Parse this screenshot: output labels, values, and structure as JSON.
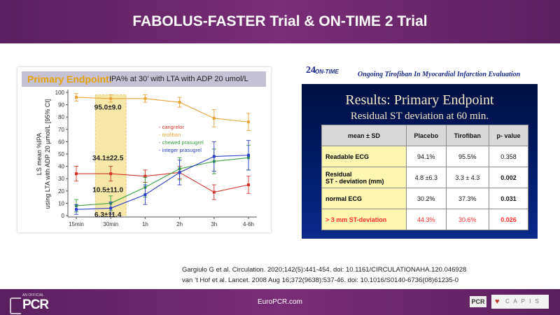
{
  "header": {
    "title": "FABOLUS-FASTER Trial & ON-TIME 2 Trial"
  },
  "left_panel": {
    "banner_lead": "Primary Endpoint:",
    "banner_rest": "IPA% at 30’ with LTA with ADP 20 umol/L"
  },
  "chart_data": {
    "type": "line",
    "ylabel_line1": "LS mean %IPA",
    "ylabel_line2": "using LTA with ADP 20 µmol/L [95% CI]",
    "categories": [
      "15min",
      "30min",
      "1h",
      "2h",
      "3h",
      "4-6h"
    ],
    "ylim": [
      0,
      100
    ],
    "yticks": [
      0,
      10,
      20,
      30,
      40,
      50,
      60,
      70,
      80,
      90,
      100
    ],
    "highlight_category": "30min",
    "series": [
      {
        "name": "- cangrelor",
        "color": "#d0362c",
        "values": [
          34,
          34,
          32,
          35,
          19,
          25
        ],
        "err": [
          6,
          6,
          5,
          5,
          6,
          7
        ]
      },
      {
        "name": "- tirofiban",
        "color": "#e8a33a",
        "values": [
          96,
          95,
          95,
          92,
          79,
          76
        ],
        "err": [
          3,
          3,
          3,
          4,
          7,
          7
        ]
      },
      {
        "name": "- chewed prasugrel",
        "color": "#3aa040",
        "values": [
          8,
          10,
          23,
          38,
          44,
          47
        ],
        "err": [
          5,
          6,
          8,
          9,
          10,
          10
        ]
      },
      {
        "name": "- integer prasugrel",
        "color": "#2a3ec9",
        "values": [
          5,
          6,
          17,
          35,
          48,
          49
        ],
        "err": [
          4,
          5,
          8,
          10,
          12,
          12
        ]
      }
    ],
    "annotations": [
      {
        "text": "95.0±9.0",
        "category": "30min",
        "y": 86
      },
      {
        "text": "34.1±22.5",
        "category": "30min",
        "y": 45
      },
      {
        "text": "10.5±11.0",
        "category": "30min",
        "y": 19
      },
      {
        "text": "6.3±11.4",
        "category": "30min",
        "y": -1
      }
    ],
    "legend_position": "right"
  },
  "right_panel": {
    "logo_number": "24",
    "logo_text": "ON-TIME",
    "tagline": "Ongoing Tirofiban In Myocardial Infarction Evaluation",
    "title": "Results: Primary Endpoint",
    "subtitle": "Residual ST deviation at 60 min.",
    "table": {
      "headers": [
        "mean ± SD",
        "Placebo",
        "Tirofiban",
        "p- value"
      ],
      "rows": [
        [
          "Readable ECG",
          "94.1%",
          "95.5%",
          "0.358"
        ],
        [
          "Residual\nST - deviation (mm)",
          "4.8  ±6.3",
          "3.3  ± 4.3",
          "0.002"
        ],
        [
          "normal ECG",
          "30.2%",
          "37.3%",
          "0.031"
        ],
        [
          "> 3 mm ST-deviation",
          "44.3%",
          "30.6%",
          "0.026"
        ]
      ]
    }
  },
  "references": {
    "line1": "Gargiulo G et al. Circulation. 2020;142(5):441-454. doi: 10.1161/CIRCULATIONAHA.120.046928",
    "line2": "van ’t Hof et al. Lancet. 2008 Aug 16;372(9638):537-46. doi: 10.1016/S0140-6736(08)61235-0"
  },
  "footer": {
    "left_small": "AN OFFICIAL",
    "left_big": "PCR",
    "center": "EuroPCR.com",
    "right_logo1": "PCR",
    "right_logo2": "C A P I S"
  },
  "colors": {
    "brand_purple": "#6b2a6b",
    "highlight_band": "#f6e39a"
  }
}
